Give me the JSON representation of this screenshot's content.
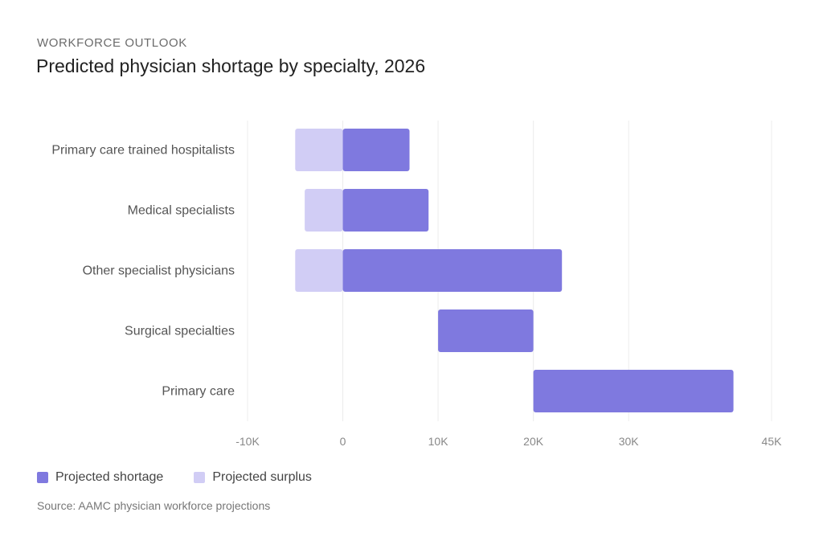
{
  "eyebrow": "WORKFORCE OUTLOOK",
  "title": "Predicted physician shortage by specialty, 2026",
  "source": "Source: AAMC physician workforce projections",
  "legend": [
    {
      "label": "Projected shortage",
      "color": "#7f79df"
    },
    {
      "label": "Projected surplus",
      "color": "#d1cdf5"
    }
  ],
  "chart_data": {
    "type": "bar",
    "orientation": "horizontal",
    "stacked": "range",
    "categories": [
      "Primary care trained hospitalists",
      "Medical specialists",
      "Other specialist physicians",
      "Surgical specialties",
      "Primary care"
    ],
    "series": [
      {
        "name": "Projected shortage",
        "color": "#7f79df",
        "ranges": [
          [
            0,
            7000
          ],
          [
            0,
            9000
          ],
          [
            0,
            23000
          ],
          [
            10000,
            20000
          ],
          [
            20000,
            41000
          ]
        ]
      },
      {
        "name": "Projected surplus",
        "color": "#d1cdf5",
        "ranges": [
          [
            -5000,
            0
          ],
          [
            -4000,
            0
          ],
          [
            -5000,
            0
          ],
          null,
          null
        ]
      }
    ],
    "xlim": [
      -10000,
      45000
    ],
    "xticks": [
      {
        "value": -10000,
        "label": "-10K"
      },
      {
        "value": 0,
        "label": "0"
      },
      {
        "value": 10000,
        "label": "10K"
      },
      {
        "value": 20000,
        "label": "20K"
      },
      {
        "value": 30000,
        "label": "30K"
      },
      {
        "value": 45000,
        "label": "45K"
      }
    ],
    "gridlines": true,
    "legend_position": "bottom-left"
  }
}
